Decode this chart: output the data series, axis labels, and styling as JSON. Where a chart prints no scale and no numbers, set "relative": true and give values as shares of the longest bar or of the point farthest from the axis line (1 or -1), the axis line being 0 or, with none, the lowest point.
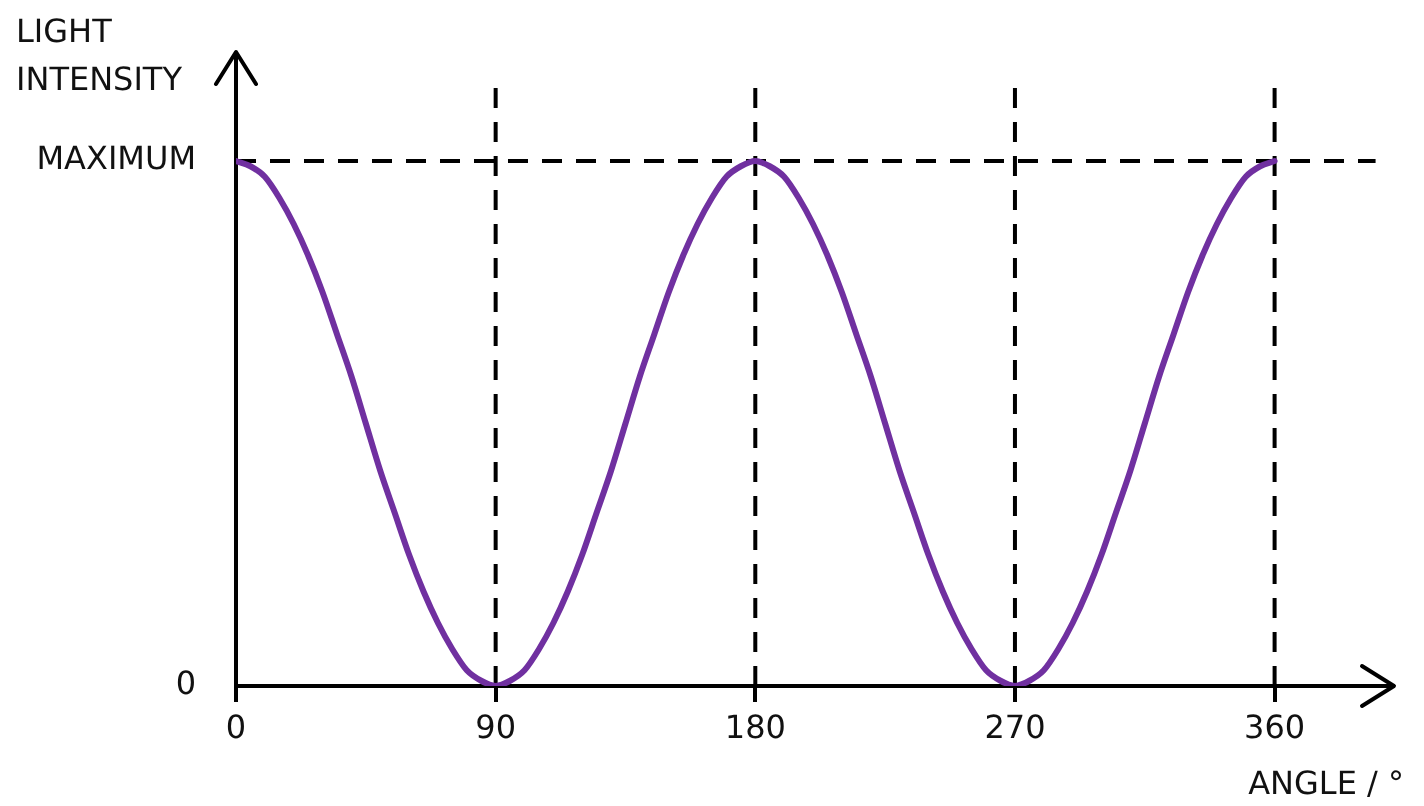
{
  "chart_data": {
    "type": "line",
    "relative": true,
    "xlabel": "ANGLE / °",
    "ylabel": "LIGHT INTENSITY",
    "x": [
      0,
      5,
      10,
      15,
      20,
      25,
      30,
      35,
      40,
      45,
      50,
      55,
      60,
      65,
      70,
      75,
      80,
      85,
      90,
      95,
      100,
      105,
      110,
      115,
      120,
      125,
      130,
      135,
      140,
      145,
      150,
      155,
      160,
      165,
      170,
      175,
      180,
      185,
      190,
      195,
      200,
      205,
      210,
      215,
      220,
      225,
      230,
      235,
      240,
      245,
      250,
      255,
      260,
      265,
      270,
      275,
      280,
      285,
      290,
      295,
      300,
      305,
      310,
      315,
      320,
      325,
      330,
      335,
      340,
      345,
      350,
      355,
      360
    ],
    "series": [
      {
        "color": "#7030a0",
        "values": [
          1,
          0.99,
          0.97,
          0.93,
          0.88,
          0.82,
          0.75,
          0.67,
          0.59,
          0.5,
          0.41,
          0.33,
          0.25,
          0.18,
          0.12,
          0.07,
          0.03,
          0.01,
          0,
          0.01,
          0.03,
          0.07,
          0.12,
          0.18,
          0.25,
          0.33,
          0.41,
          0.5,
          0.59,
          0.67,
          0.75,
          0.82,
          0.88,
          0.93,
          0.97,
          0.99,
          1,
          0.99,
          0.97,
          0.93,
          0.88,
          0.82,
          0.75,
          0.67,
          0.59,
          0.5,
          0.41,
          0.33,
          0.25,
          0.18,
          0.12,
          0.07,
          0.03,
          0.01,
          0,
          0.01,
          0.03,
          0.07,
          0.12,
          0.18,
          0.25,
          0.33,
          0.41,
          0.5,
          0.59,
          0.67,
          0.75,
          0.82,
          0.88,
          0.93,
          0.97,
          0.99,
          1
        ]
      },
      {
        "type": "line",
        "x": [
          0,
          395
        ],
        "values": [
          1,
          1
        ],
        "color": "#000000",
        "line_style": "dashed"
      }
    ],
    "xlim": [
      0,
      400
    ],
    "xticks": [
      0,
      90,
      180,
      270,
      360
    ],
    "ref_lines": [
      {
        "axis": "x",
        "value": 90,
        "color": "#000000",
        "line_style": "dashed"
      },
      {
        "axis": "x",
        "value": 180,
        "color": "#000000",
        "line_style": "dashed"
      },
      {
        "axis": "x",
        "value": 270,
        "color": "#000000",
        "line_style": "dashed"
      },
      {
        "axis": "x",
        "value": 360,
        "color": "#000000",
        "line_style": "dashed"
      }
    ],
    "annotations": [
      {
        "text": "MAXIMUM",
        "x": 0,
        "y": 1
      },
      "0"
    ],
    "marker": "none"
  }
}
